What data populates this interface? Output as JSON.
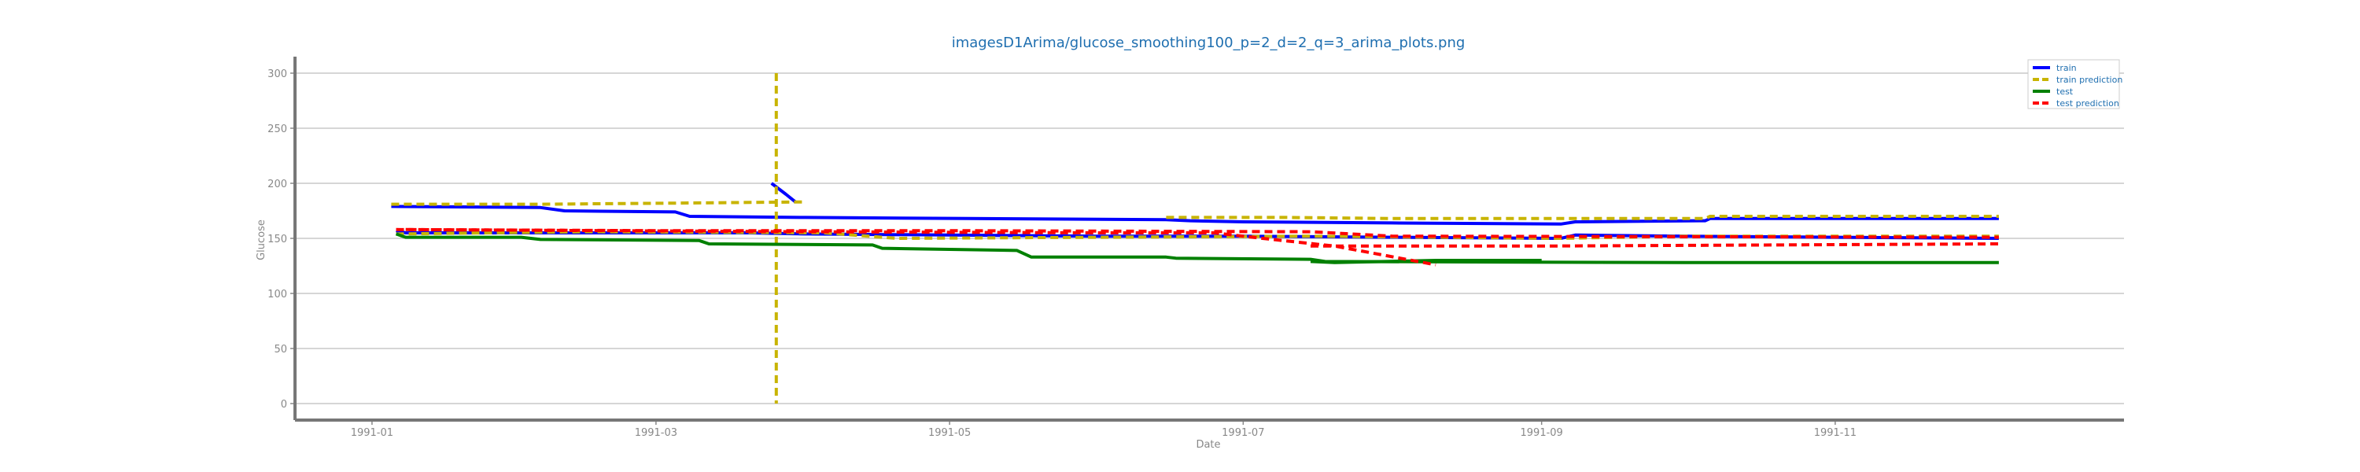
{
  "chart_data": {
    "type": "line",
    "title": "imagesD1Arima/glucose_smoothing100_p=2_d=2_q=3_arima_plots.png",
    "xlabel": "Date",
    "ylabel": "Glucose",
    "xlim": [
      "1990-12-16",
      "1991-12-31"
    ],
    "ylim": [
      -15,
      315
    ],
    "x_ticks": [
      {
        "date": "1991-01-01",
        "label": "1991-01"
      },
      {
        "date": "1991-03-01",
        "label": "1991-03"
      },
      {
        "date": "1991-05-01",
        "label": "1991-05"
      },
      {
        "date": "1991-07-01",
        "label": "1991-07"
      },
      {
        "date": "1991-09-01",
        "label": "1991-09"
      },
      {
        "date": "1991-11-01",
        "label": "1991-11"
      }
    ],
    "y_ticks": [
      0,
      50,
      100,
      150,
      200,
      250,
      300
    ],
    "grid": "horizontal",
    "legend_position": "top-right",
    "series": [
      {
        "name": "train",
        "color": "#0000ff",
        "style": "solid",
        "segments": [
          [
            [
              "1991-01-05",
              179
            ],
            [
              "1991-02-05",
              178
            ],
            [
              "1991-02-10",
              175
            ],
            [
              "1991-03-05",
              174
            ],
            [
              "1991-03-08",
              170
            ],
            [
              "1991-04-01",
              169
            ],
            [
              "1991-05-05",
              168
            ],
            [
              "1991-06-15",
              167
            ],
            [
              "1991-06-20",
              166
            ],
            [
              "1991-07-01",
              165
            ],
            [
              "1991-08-01",
              164
            ],
            [
              "1991-09-05",
              163
            ],
            [
              "1991-09-08",
              165
            ],
            [
              "1991-10-05",
              166
            ],
            [
              "1991-10-06",
              168
            ],
            [
              "1991-12-05",
              168
            ]
          ],
          [
            [
              "1991-01-06",
              157
            ],
            [
              "1991-01-08",
              155
            ],
            [
              "1991-02-15",
              155
            ],
            [
              "1991-03-20",
              155
            ],
            [
              "1991-04-01",
              154
            ],
            [
              "1991-05-01",
              153
            ],
            [
              "1991-06-01",
              152
            ],
            [
              "1991-07-01",
              152
            ],
            [
              "1991-08-01",
              151
            ],
            [
              "1991-09-05",
              150
            ],
            [
              "1991-09-08",
              153
            ],
            [
              "1991-10-01",
              152
            ],
            [
              "1991-11-01",
              151
            ],
            [
              "1991-12-05",
              150
            ]
          ],
          [
            [
              "1991-03-25",
              200
            ],
            [
              "1991-03-28",
              190
            ],
            [
              "1991-03-30",
              183
            ]
          ]
        ]
      },
      {
        "name": "train prediction",
        "color": "#c8b400",
        "style": "dashed",
        "segments": [
          [
            [
              "1991-01-05",
              181
            ],
            [
              "1991-02-05",
              181
            ],
            [
              "1991-03-05",
              182
            ],
            [
              "1991-03-30",
              183
            ],
            [
              "1991-04-01",
              183
            ]
          ],
          [
            [
              "1991-03-26",
              300
            ],
            [
              "1991-03-26",
              200
            ],
            [
              "1991-03-26",
              0
            ]
          ],
          [
            [
              "1991-06-15",
              169
            ],
            [
              "1991-07-10",
              169
            ],
            [
              "1991-08-01",
              168
            ],
            [
              "1991-10-05",
              168
            ],
            [
              "1991-10-06",
              170
            ],
            [
              "1991-12-05",
              170
            ]
          ],
          [
            [
              "1991-01-06",
              154
            ],
            [
              "1991-02-15",
              156
            ],
            [
              "1991-04-05",
              155
            ],
            [
              "1991-04-20",
              150
            ],
            [
              "1991-06-01",
              151
            ],
            [
              "1991-07-15",
              152
            ],
            [
              "1991-09-05",
              150
            ],
            [
              "1991-10-01",
              152
            ],
            [
              "1991-12-05",
              152
            ]
          ]
        ]
      },
      {
        "name": "test",
        "color": "#008000",
        "style": "solid",
        "segments": [
          [
            [
              "1991-01-06",
              154
            ],
            [
              "1991-01-08",
              151
            ],
            [
              "1991-02-01",
              151
            ],
            [
              "1991-02-05",
              149
            ],
            [
              "1991-03-10",
              148
            ],
            [
              "1991-03-12",
              145
            ],
            [
              "1991-04-15",
              144
            ],
            [
              "1991-04-17",
              141
            ],
            [
              "1991-05-15",
              139
            ],
            [
              "1991-05-18",
              133
            ],
            [
              "1991-06-15",
              133
            ],
            [
              "1991-06-17",
              132
            ],
            [
              "1991-07-15",
              131
            ],
            [
              "1991-07-18",
              129
            ],
            [
              "1991-10-01",
              128
            ],
            [
              "1991-12-05",
              128
            ]
          ],
          [
            [
              "1991-07-15",
              129
            ],
            [
              "1991-07-20",
              128
            ],
            [
              "1991-08-10",
              130
            ],
            [
              "1991-09-01",
              130
            ]
          ]
        ]
      },
      {
        "name": "test prediction",
        "color": "#ff0000",
        "style": "dashed",
        "segments": [
          [
            [
              "1991-01-06",
              158
            ],
            [
              "1991-03-01",
              157
            ],
            [
              "1991-05-01",
              157
            ],
            [
              "1991-07-15",
              156
            ],
            [
              "1991-08-01",
              152
            ],
            [
              "1991-12-05",
              151
            ]
          ],
          [
            [
              "1991-01-08",
              158
            ],
            [
              "1991-04-01",
              156
            ],
            [
              "1991-06-01",
              155
            ],
            [
              "1991-06-25",
              155
            ],
            [
              "1991-07-05",
              150
            ],
            [
              "1991-07-20",
              143
            ],
            [
              "1991-08-10",
              126
            ]
          ],
          [
            [
              "1991-07-15",
              143
            ],
            [
              "1991-09-01",
              143
            ],
            [
              "1991-12-05",
              145
            ]
          ]
        ]
      }
    ]
  }
}
